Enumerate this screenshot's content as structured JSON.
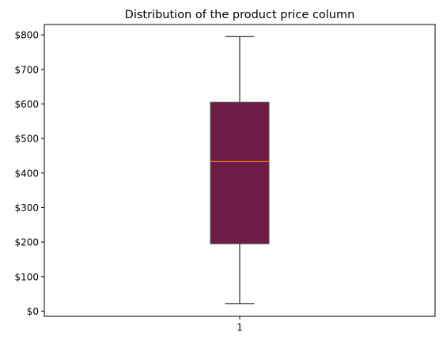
{
  "chart_data": {
    "type": "box",
    "title": "Distribution of the product price column",
    "xlabel": "",
    "ylabel": "",
    "categories": [
      "1"
    ],
    "ylim": [
      -15,
      830
    ],
    "yticks": [
      0,
      100,
      200,
      300,
      400,
      500,
      600,
      700,
      800
    ],
    "ytick_labels": [
      "$0",
      "$100",
      "$200",
      "$300",
      "$400",
      "$500",
      "$600",
      "$700",
      "$800"
    ],
    "grid": false,
    "boxes": [
      {
        "category": "1",
        "whisker_low": 22,
        "q1": 195,
        "median": 433,
        "q3": 605,
        "whisker_high": 795
      }
    ],
    "colors": {
      "box_fill": "#6d1d45",
      "box_edge": "#555555",
      "median": "#ff7f0e",
      "whisker": "#000000",
      "axes": "#000000"
    }
  }
}
